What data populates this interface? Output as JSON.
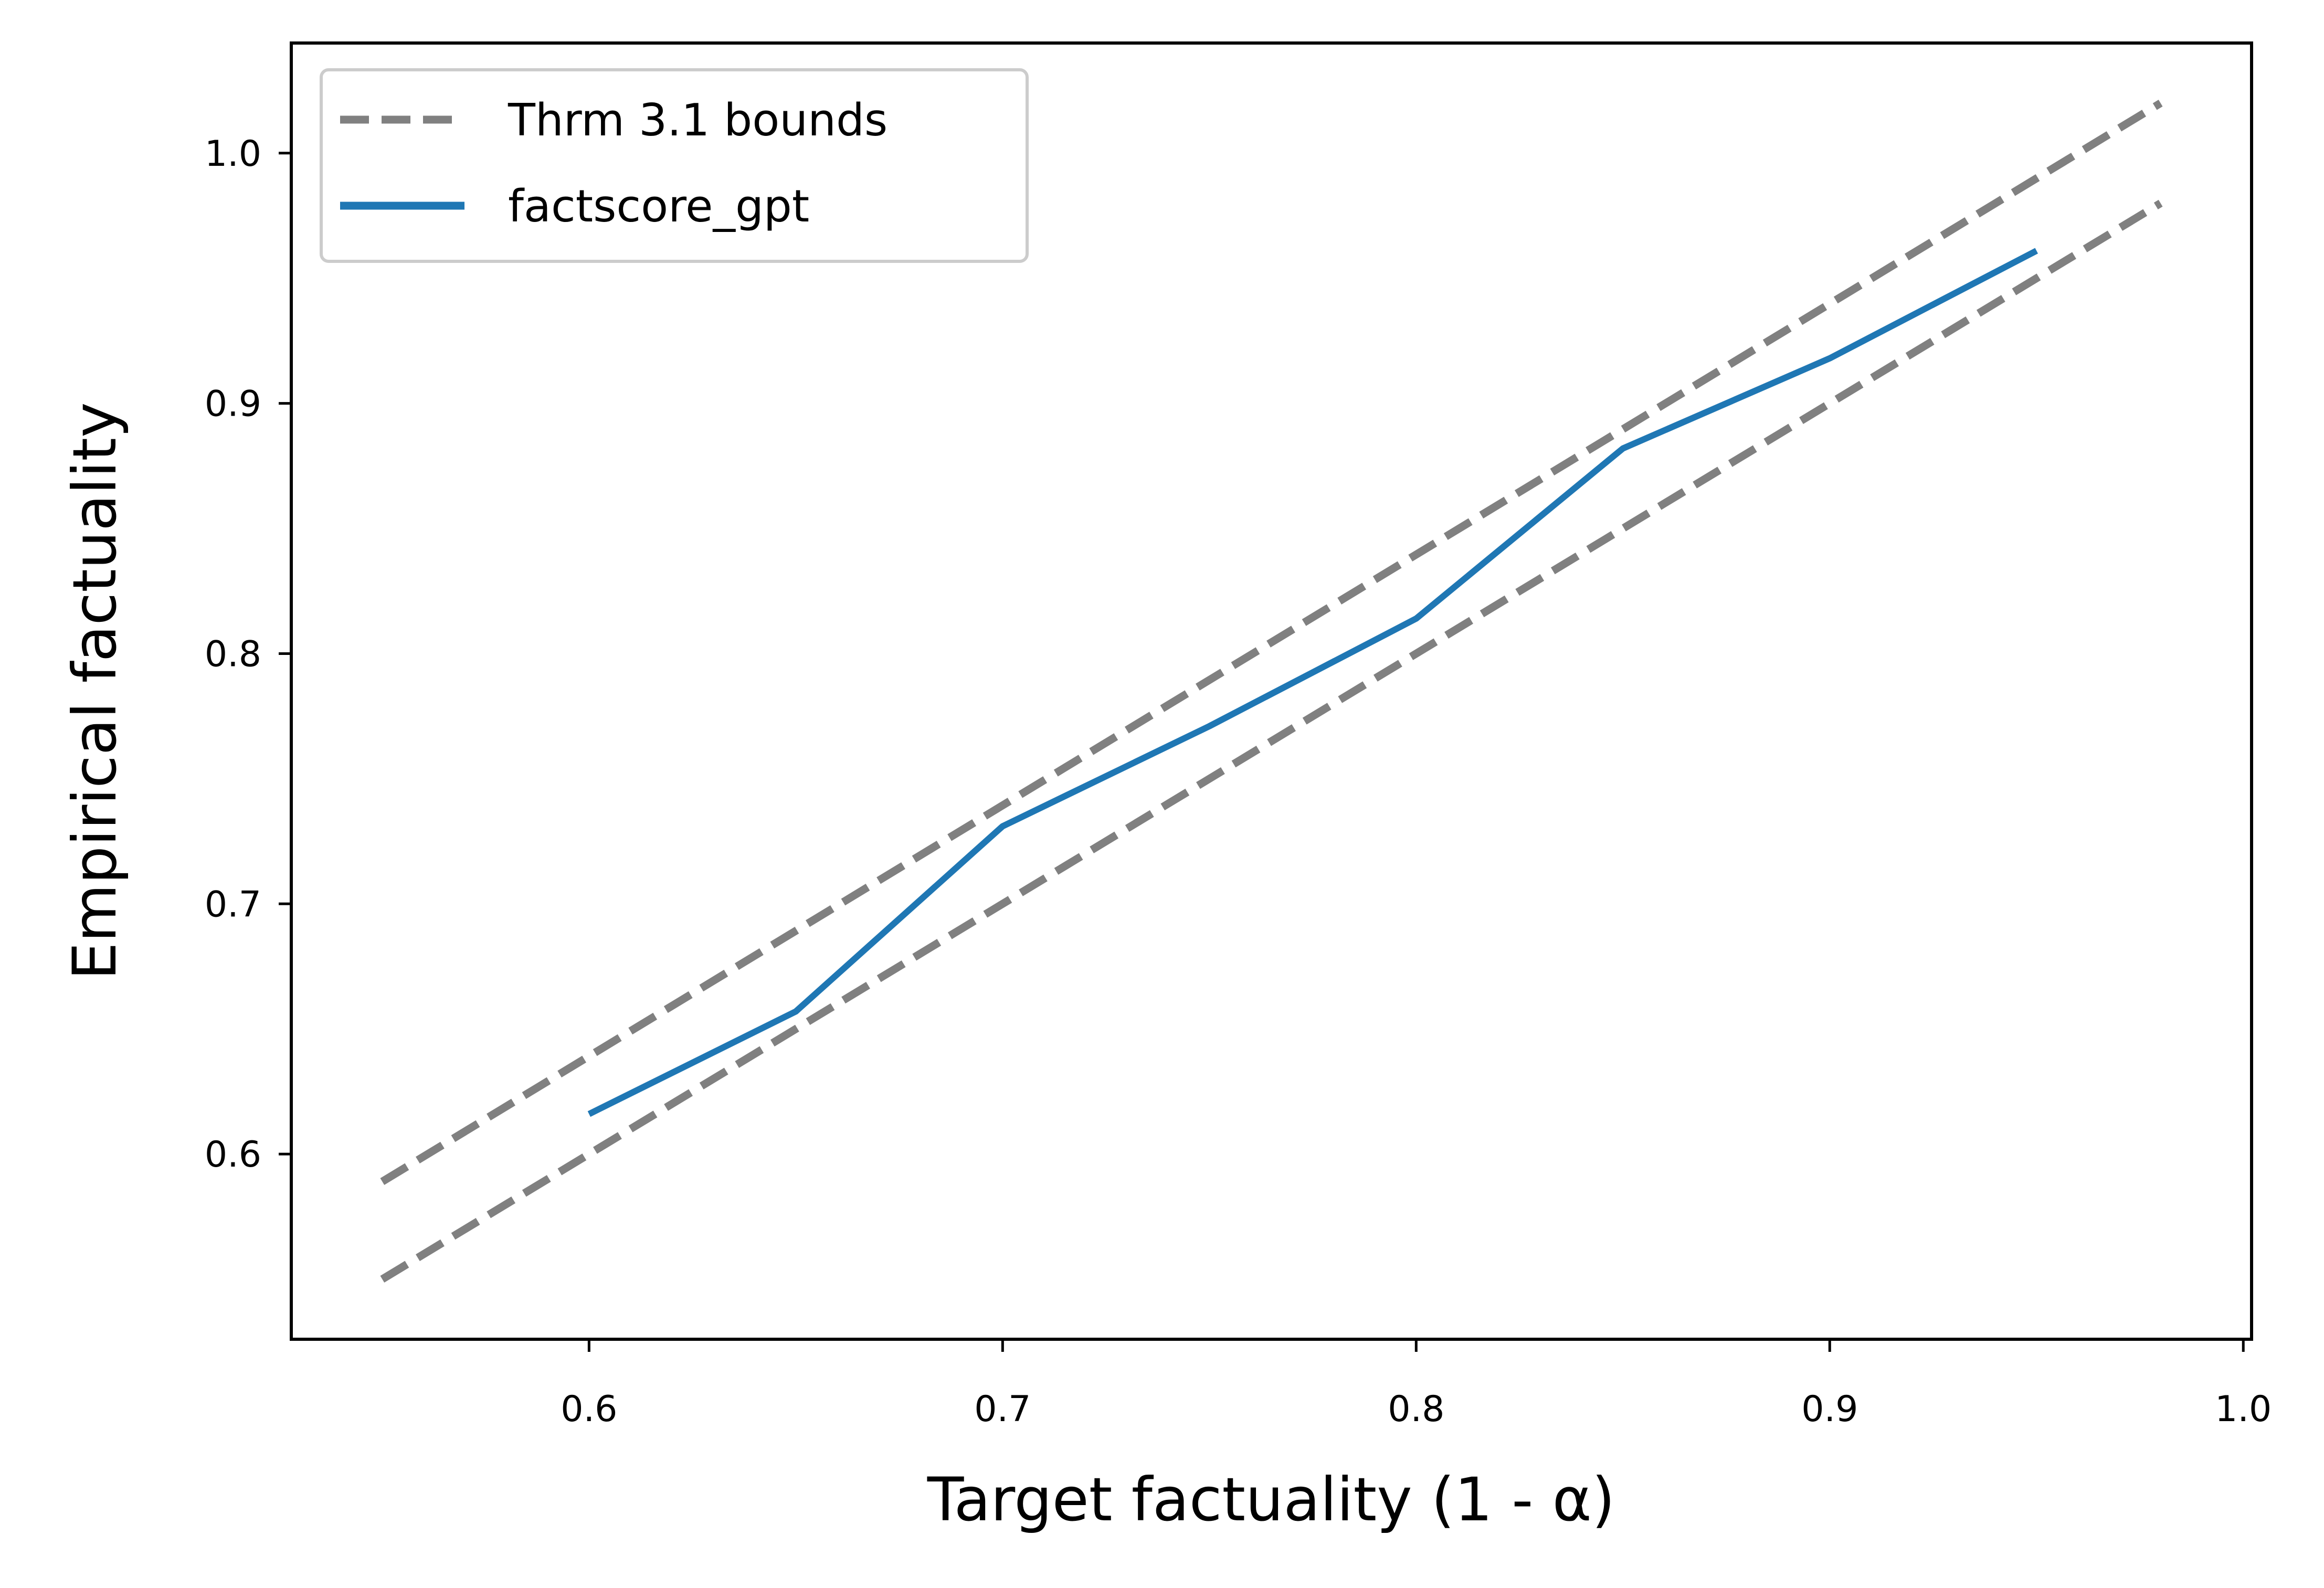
{
  "chart_data": {
    "type": "line",
    "xlabel": "Target factuality (1 - α)",
    "ylabel": "Empirical factuality",
    "xlim": [
      0.528,
      1.002
    ],
    "ylim": [
      0.526,
      1.044
    ],
    "xticks": [
      0.6,
      0.7,
      0.8,
      0.9,
      1.0
    ],
    "xtick_labels": [
      "0.6",
      "0.7",
      "0.8",
      "0.9",
      "1.0"
    ],
    "yticks": [
      0.6,
      0.7,
      0.8,
      0.9,
      1.0
    ],
    "ytick_labels": [
      "0.6",
      "0.7",
      "0.8",
      "0.9",
      "1.0"
    ],
    "grid": false,
    "legend_position": "top-left",
    "colors": {
      "bounds": "#808080",
      "series": "#1f77b4"
    },
    "bounds": {
      "name": "Thrm 3.1 bounds",
      "style": "dashed",
      "upper": {
        "x": [
          0.55,
          0.98
        ],
        "y": [
          0.589,
          1.02
        ]
      },
      "lower": {
        "x": [
          0.55,
          0.98
        ],
        "y": [
          0.55,
          0.98
        ]
      }
    },
    "series": [
      {
        "name": "factscore_gpt",
        "x": [
          0.6,
          0.65,
          0.7,
          0.75,
          0.8,
          0.85,
          0.9,
          0.95
        ],
        "y": [
          0.616,
          0.657,
          0.731,
          0.771,
          0.814,
          0.882,
          0.918,
          0.961
        ]
      }
    ]
  }
}
